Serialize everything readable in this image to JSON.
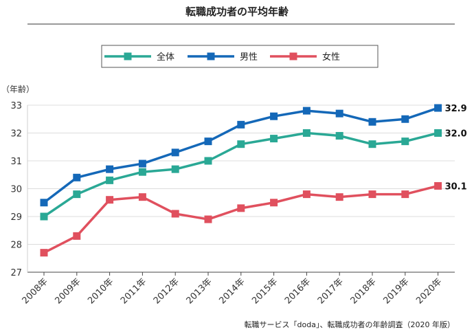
{
  "chart_data": {
    "type": "line",
    "title": "転職成功者の平均年齢",
    "ylabel": "（年齢）",
    "xlabel": "",
    "categories": [
      "2008年",
      "2009年",
      "2010年",
      "2011年",
      "2012年",
      "2013年",
      "2014年",
      "2015年",
      "2016年",
      "2017年",
      "2018年",
      "2019年",
      "2020年"
    ],
    "ylim": [
      27,
      33
    ],
    "yticks": [
      "27",
      "28",
      "29",
      "30",
      "31",
      "32",
      "33"
    ],
    "grid": "horizontal",
    "legend_position": "top",
    "series": [
      {
        "name": "全体",
        "color": "#2aa895",
        "end_label": "32.0",
        "values": [
          29.0,
          29.8,
          30.3,
          30.6,
          30.7,
          31.0,
          31.6,
          31.8,
          32.0,
          31.9,
          31.6,
          31.7,
          32.0
        ]
      },
      {
        "name": "男性",
        "color": "#1468b8",
        "end_label": "32.9",
        "values": [
          29.5,
          30.4,
          30.7,
          30.9,
          31.3,
          31.7,
          32.3,
          32.6,
          32.8,
          32.7,
          32.4,
          32.5,
          32.9
        ]
      },
      {
        "name": "女性",
        "color": "#e0505e",
        "end_label": "30.1",
        "values": [
          27.7,
          28.3,
          29.6,
          29.7,
          29.1,
          28.9,
          29.3,
          29.5,
          29.8,
          29.7,
          29.8,
          29.8,
          30.1
        ]
      }
    ],
    "source": "転職サービス「doda」、転職成功者の年齢調査（2020 年版）"
  }
}
